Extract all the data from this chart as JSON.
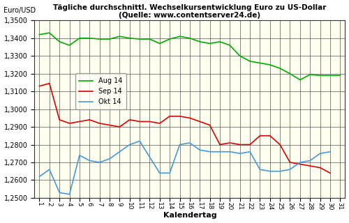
{
  "title": "Tägliche durchschnittl. Wechselkursentwicklung Euro zu US-Dollar\n(Quelle: www.contentserver24.de)",
  "xlabel": "Kalendertag",
  "ylabel": "Euro/USD",
  "ylim": [
    1.25,
    1.35
  ],
  "xlim": [
    1,
    31
  ],
  "fig_background": "#FFFFFF",
  "plot_background": "#FFFFF0",
  "grid_color": "#555555",
  "legend_labels": [
    "Aug 14",
    "Sep 14",
    "Okt 14"
  ],
  "legend_colors": [
    "#00AA00",
    "#DD0000",
    "#4499DD"
  ],
  "aug14": [
    1.342,
    1.343,
    1.338,
    1.336,
    1.34,
    1.34,
    1.3395,
    1.3395,
    1.341,
    1.34,
    1.3395,
    1.3395,
    1.337,
    1.3395,
    1.341,
    1.34,
    1.338,
    1.337,
    1.338,
    1.336,
    1.33,
    1.327,
    1.326,
    1.325,
    1.323,
    1.32,
    1.3165,
    1.3195,
    1.319,
    1.319,
    1.319
  ],
  "sep14": [
    1.313,
    1.3145,
    1.294,
    1.292,
    1.293,
    1.294,
    1.292,
    1.291,
    1.29,
    1.294,
    1.293,
    1.293,
    1.292,
    1.296,
    1.296,
    1.295,
    1.293,
    1.291,
    1.28,
    1.281,
    1.28,
    1.28,
    1.285,
    1.285,
    1.28,
    1.27,
    1.269,
    1.268,
    1.267,
    1.264,
    null
  ],
  "okt14": [
    1.262,
    1.266,
    1.253,
    1.252,
    1.274,
    1.271,
    1.27,
    1.272,
    1.276,
    1.28,
    1.282,
    1.273,
    1.264,
    1.264,
    1.28,
    1.281,
    1.277,
    1.276,
    1.276,
    1.276,
    1.275,
    1.276,
    1.266,
    1.265,
    1.265,
    1.266,
    1.27,
    1.271,
    1.275,
    1.276,
    null
  ]
}
